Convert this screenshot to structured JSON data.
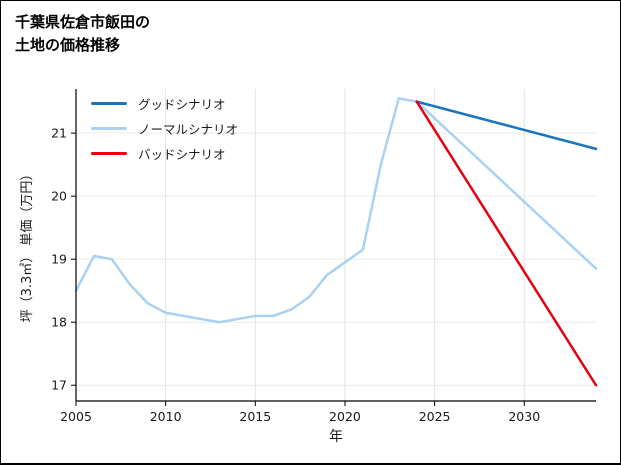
{
  "title": {
    "line1": "千葉県佐倉市飯田の",
    "line2": "土地の価格推移"
  },
  "colors": {
    "good_scenario": "#1b75bc",
    "normal_scenario": "#a8d1f2",
    "bad_scenario": "#e60012",
    "grid_x": "#e2e2e2",
    "grid_y": "#ececec",
    "axis": "#000000",
    "tick_text": "#1a1a1a"
  },
  "chart_data": {
    "type": "line",
    "title": "千葉県佐倉市飯田の土地の価格推移",
    "xlabel": "年",
    "ylabel": "坪（3.3㎡） 単価（万円）",
    "xlim": [
      2005,
      2034
    ],
    "ylim": [
      16.75,
      21.7
    ],
    "xticks": [
      2005,
      2010,
      2015,
      2020,
      2025,
      2030
    ],
    "yticks": [
      17,
      18,
      19,
      20,
      21
    ],
    "grid": true,
    "legend_position": "top-left",
    "series": [
      {
        "name": "グッドシナリオ",
        "color": "#1b75bc",
        "zorder": 2,
        "x": [
          2024,
          2034
        ],
        "values": [
          21.5,
          20.75
        ]
      },
      {
        "name": "ノーマルシナリオ",
        "color": "#a8d1f2",
        "zorder": 1,
        "x": [
          2005,
          2006,
          2007,
          2008,
          2009,
          2010,
          2011,
          2012,
          2013,
          2014,
          2015,
          2016,
          2017,
          2018,
          2019,
          2020,
          2021,
          2022,
          2023,
          2024,
          2034
        ],
        "values": [
          18.5,
          19.05,
          19.0,
          18.6,
          18.3,
          18.15,
          18.1,
          18.05,
          18.0,
          18.05,
          18.1,
          18.1,
          18.2,
          18.4,
          18.75,
          18.95,
          19.15,
          20.5,
          21.55,
          21.5,
          18.85
        ]
      },
      {
        "name": "バッドシナリオ",
        "color": "#e60012",
        "zorder": 3,
        "x": [
          2024,
          2034
        ],
        "values": [
          21.5,
          17.0
        ]
      }
    ]
  }
}
